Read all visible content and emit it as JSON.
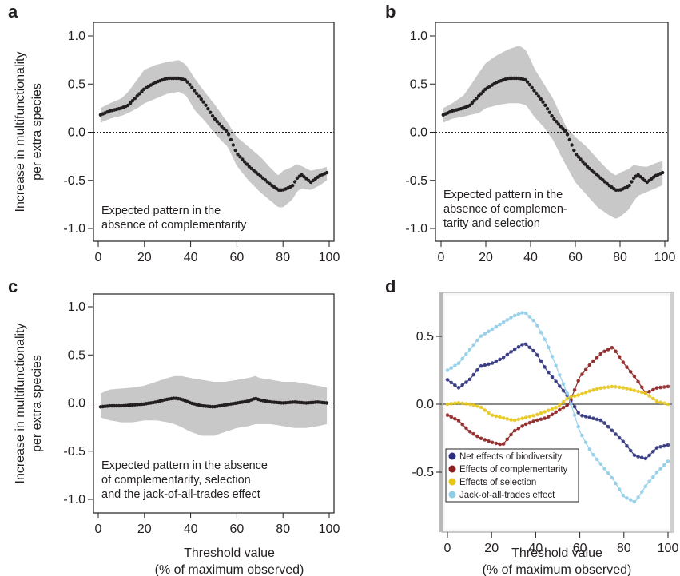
{
  "figure": {
    "ylabel": "Increase in multifunctionality\nper extra species",
    "xlabel": "Threshold value\n(% of maximum observed)"
  },
  "chart_data": [
    {
      "panel": "a",
      "type": "line",
      "annotation": [
        "Expected pattern in the",
        "absence of complementarity"
      ],
      "xticks": [
        "0",
        "20",
        "40",
        "60",
        "80",
        "100"
      ],
      "yticks": [
        "1.0",
        "0.5",
        "0.0",
        "-0.5",
        "-1.0"
      ],
      "xlim": [
        0,
        100
      ],
      "ylim": [
        -1.0,
        1.0
      ],
      "x": [
        1,
        5,
        10,
        13,
        17,
        20,
        25,
        30,
        35,
        38,
        42,
        46,
        50,
        53,
        56,
        60,
        65,
        70,
        75,
        78,
        80,
        84,
        86,
        88,
        92,
        96,
        99
      ],
      "y": [
        0.18,
        0.22,
        0.25,
        0.28,
        0.38,
        0.45,
        0.52,
        0.56,
        0.56,
        0.54,
        0.42,
        0.3,
        0.15,
        0.07,
        0.0,
        -0.22,
        -0.35,
        -0.45,
        -0.55,
        -0.6,
        -0.6,
        -0.56,
        -0.48,
        -0.44,
        -0.52,
        -0.45,
        -0.42
      ],
      "upper": [
        0.25,
        0.3,
        0.35,
        0.42,
        0.55,
        0.65,
        0.7,
        0.73,
        0.75,
        0.7,
        0.55,
        0.42,
        0.3,
        0.2,
        0.1,
        -0.05,
        -0.15,
        -0.25,
        -0.38,
        -0.45,
        -0.4,
        -0.36,
        -0.33,
        -0.35,
        -0.4,
        -0.38,
        -0.36
      ],
      "lower": [
        0.1,
        0.14,
        0.17,
        0.2,
        0.25,
        0.3,
        0.35,
        0.4,
        0.42,
        0.38,
        0.22,
        0.12,
        0.0,
        -0.08,
        -0.15,
        -0.35,
        -0.5,
        -0.62,
        -0.72,
        -0.78,
        -0.78,
        -0.7,
        -0.62,
        -0.58,
        -0.6,
        -0.55,
        -0.5
      ],
      "zero_line": true
    },
    {
      "panel": "b",
      "type": "line",
      "annotation": [
        "Expected pattern in the",
        "absence of complemen-",
        "tarity and selection"
      ],
      "xticks": [
        "0",
        "20",
        "40",
        "60",
        "80",
        "100"
      ],
      "yticks": [
        "1.0",
        "0.5",
        "0.0",
        "-0.5",
        "-1.0"
      ],
      "xlim": [
        0,
        100
      ],
      "ylim": [
        -1.0,
        1.0
      ],
      "x": [
        1,
        5,
        10,
        13,
        17,
        20,
        25,
        30,
        35,
        38,
        42,
        46,
        50,
        53,
        56,
        60,
        65,
        70,
        75,
        78,
        80,
        84,
        86,
        88,
        92,
        96,
        99
      ],
      "y": [
        0.18,
        0.22,
        0.25,
        0.28,
        0.38,
        0.45,
        0.52,
        0.56,
        0.56,
        0.54,
        0.42,
        0.3,
        0.15,
        0.07,
        0.0,
        -0.22,
        -0.35,
        -0.45,
        -0.55,
        -0.6,
        -0.6,
        -0.56,
        -0.48,
        -0.44,
        -0.52,
        -0.45,
        -0.42
      ],
      "upper": [
        0.25,
        0.3,
        0.38,
        0.48,
        0.62,
        0.72,
        0.8,
        0.86,
        0.9,
        0.85,
        0.65,
        0.5,
        0.35,
        0.2,
        0.05,
        -0.05,
        -0.15,
        -0.28,
        -0.4,
        -0.45,
        -0.42,
        -0.38,
        -0.34,
        -0.35,
        -0.36,
        -0.32,
        -0.3
      ],
      "lower": [
        0.1,
        0.14,
        0.16,
        0.18,
        0.2,
        0.25,
        0.28,
        0.3,
        0.3,
        0.28,
        0.15,
        0.05,
        -0.08,
        -0.22,
        -0.35,
        -0.52,
        -0.65,
        -0.78,
        -0.86,
        -0.9,
        -0.88,
        -0.8,
        -0.72,
        -0.66,
        -0.62,
        -0.58,
        -0.55
      ],
      "zero_line": true
    },
    {
      "panel": "c",
      "type": "line",
      "annotation": [
        "Expected pattern in the absence",
        "of complementarity, selection",
        "and the jack-of-all-trades effect"
      ],
      "xticks": [
        "0",
        "20",
        "40",
        "60",
        "80",
        "100"
      ],
      "yticks": [
        "1.0",
        "0.5",
        "0.0",
        "-0.5",
        "-1.0"
      ],
      "xlim": [
        0,
        100
      ],
      "ylim": [
        -1.0,
        1.0
      ],
      "x": [
        1,
        5,
        10,
        15,
        20,
        25,
        30,
        33,
        36,
        40,
        45,
        50,
        55,
        60,
        65,
        68,
        70,
        75,
        80,
        85,
        90,
        95,
        99
      ],
      "y": [
        -0.04,
        -0.03,
        -0.03,
        -0.02,
        -0.01,
        0.01,
        0.04,
        0.05,
        0.04,
        0.0,
        -0.03,
        -0.04,
        -0.02,
        0.0,
        0.02,
        0.05,
        0.03,
        0.01,
        0.0,
        0.01,
        0.0,
        0.01,
        0.0
      ],
      "upper": [
        0.1,
        0.14,
        0.15,
        0.16,
        0.18,
        0.22,
        0.26,
        0.28,
        0.28,
        0.26,
        0.24,
        0.22,
        0.22,
        0.24,
        0.26,
        0.28,
        0.26,
        0.24,
        0.22,
        0.22,
        0.2,
        0.18,
        0.16
      ],
      "lower": [
        -0.15,
        -0.18,
        -0.2,
        -0.2,
        -0.18,
        -0.18,
        -0.2,
        -0.22,
        -0.25,
        -0.3,
        -0.34,
        -0.34,
        -0.3,
        -0.26,
        -0.24,
        -0.22,
        -0.22,
        -0.22,
        -0.24,
        -0.26,
        -0.26,
        -0.24,
        -0.22
      ],
      "zero_line": true
    },
    {
      "panel": "d",
      "type": "line",
      "xticks": [
        "0",
        "20",
        "40",
        "60",
        "80",
        "100"
      ],
      "yticks": [
        "0.5",
        "0.0",
        "-0.5"
      ],
      "xlim": [
        0,
        100
      ],
      "ylim": [
        -0.8,
        0.8
      ],
      "x": [
        0,
        5,
        10,
        15,
        20,
        25,
        30,
        35,
        40,
        45,
        50,
        55,
        60,
        65,
        70,
        75,
        80,
        85,
        90,
        95,
        100
      ],
      "series": [
        {
          "name": "Net effects of biodiversity",
          "color": "#2b2f7a",
          "values": [
            0.18,
            0.12,
            0.18,
            0.28,
            0.3,
            0.34,
            0.4,
            0.45,
            0.38,
            0.25,
            0.15,
            0.05,
            -0.08,
            -0.1,
            -0.12,
            -0.2,
            -0.28,
            -0.38,
            -0.4,
            -0.32,
            -0.3
          ]
        },
        {
          "name": "Effects of complementarity",
          "color": "#8b1e1e",
          "values": [
            -0.08,
            -0.12,
            -0.2,
            -0.25,
            -0.28,
            -0.3,
            -0.2,
            -0.15,
            -0.12,
            -0.1,
            -0.05,
            0.0,
            0.2,
            0.3,
            0.38,
            0.42,
            0.3,
            0.2,
            0.08,
            0.12,
            0.13
          ]
        },
        {
          "name": "Effects of selection",
          "color": "#e6c619",
          "values": [
            0.0,
            0.01,
            0.0,
            -0.02,
            -0.08,
            -0.1,
            -0.12,
            -0.1,
            -0.08,
            -0.05,
            -0.02,
            0.05,
            0.07,
            0.1,
            0.12,
            0.13,
            0.12,
            0.1,
            0.08,
            0.02,
            0.0
          ]
        },
        {
          "name": "Jack-of-all-trades effect",
          "color": "#8fcde8",
          "values": [
            0.25,
            0.3,
            0.4,
            0.5,
            0.55,
            0.6,
            0.65,
            0.68,
            0.6,
            0.45,
            0.25,
            0.05,
            -0.2,
            -0.35,
            -0.45,
            -0.55,
            -0.68,
            -0.72,
            -0.6,
            -0.5,
            -0.42
          ]
        }
      ],
      "legend_position": "bottom-left",
      "zero_line": true
    }
  ]
}
